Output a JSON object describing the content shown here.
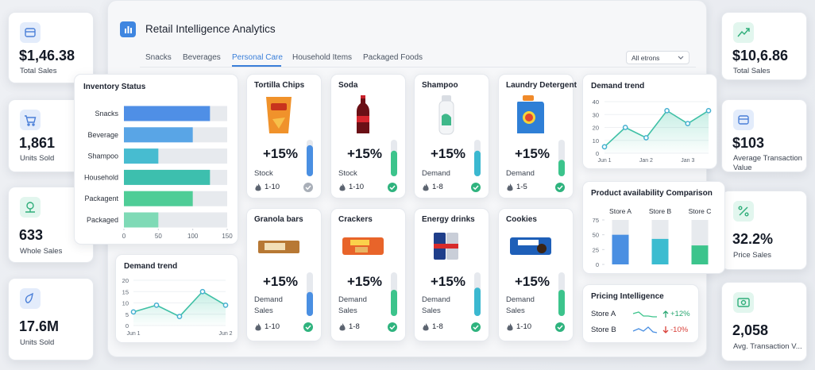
{
  "header": {
    "title": "Retail Intelligence Analytics",
    "tabs": [
      {
        "label": "Snacks"
      },
      {
        "label": "Beverages"
      },
      {
        "label": "Personal Care",
        "active": true
      },
      {
        "label": "Household Items"
      },
      {
        "label": "Packaged Foods"
      }
    ],
    "filter": "All etrons"
  },
  "kpis_left": [
    {
      "value": "$1,46.38",
      "label": "Total Sales"
    },
    {
      "value": "1,861",
      "label": "Units Sold"
    },
    {
      "value": "633",
      "label": "Whole Sales"
    },
    {
      "value": "17.6M",
      "label": "Units Sold"
    }
  ],
  "kpis_right": [
    {
      "value": "$10,6.86",
      "label": "Total Sales"
    },
    {
      "value": "$103",
      "label": "Average Transaction Value"
    },
    {
      "value": "32.2%",
      "label": "Price Sales"
    },
    {
      "value": "2,058",
      "label": "Avg. Transaction V..."
    }
  ],
  "products": [
    {
      "name": "Tortilla Chips",
      "change": "+15%",
      "labels": [
        "Stock"
      ],
      "range": "1-10",
      "gauge": 85,
      "color": "#4a8fe2"
    },
    {
      "name": "Soda",
      "change": "+15%",
      "labels": [
        "Stock"
      ],
      "range": "1-10",
      "gauge": 70,
      "color": "#3cc48c"
    },
    {
      "name": "Shampoo",
      "change": "+15%",
      "labels": [
        "Demand"
      ],
      "range": "1-8",
      "gauge": 70,
      "color": "#3bb8d0"
    },
    {
      "name": "Laundry Detergent",
      "change": "+15%",
      "labels": [
        "Demand"
      ],
      "range": "1-5",
      "gauge": 45,
      "color": "#3cc48c"
    },
    {
      "name": "Granola bars",
      "change": "+15%",
      "labels": [
        "Demand",
        "Sales"
      ],
      "range": "1-10",
      "gauge": 55,
      "color": "#4a8fe2"
    },
    {
      "name": "Crackers",
      "change": "+15%",
      "labels": [
        "Demand",
        "Sales"
      ],
      "range": "1-8",
      "gauge": 60,
      "color": "#3cc48c"
    },
    {
      "name": "Energy drinks",
      "change": "+15%",
      "labels": [
        "Demand",
        "Sales"
      ],
      "range": "1-8",
      "gauge": 65,
      "color": "#3bb8d0"
    },
    {
      "name": "Cookies",
      "change": "+15%",
      "labels": [
        "Demand",
        "Sales"
      ],
      "range": "1-10",
      "gauge": 60,
      "color": "#3cc48c"
    }
  ],
  "chart_data": [
    {
      "type": "hbar",
      "title": "Inventory Status",
      "categories": [
        "Snacks",
        "Beverage",
        "Shampoo",
        "Household",
        "Packagent",
        "Packaged"
      ],
      "values": [
        125,
        100,
        50,
        125,
        100,
        50
      ],
      "colors": [
        "#4f8fe6",
        "#59a5e6",
        "#47bcd0",
        "#3dbfae",
        "#4fcd97",
        "#7fdab6"
      ],
      "xlim": [
        0,
        150
      ],
      "xticks": [
        0,
        50,
        100,
        150
      ]
    },
    {
      "type": "line",
      "title": "Demand trend",
      "categories": [
        "Jun 1",
        null,
        "Jan 2",
        null,
        "Jan 3",
        null
      ],
      "values": [
        5,
        20,
        12,
        33,
        23,
        33
      ],
      "color": "#45b0d0",
      "ylim": [
        0,
        40
      ],
      "yticks": [
        0,
        10,
        20,
        30,
        40
      ]
    },
    {
      "type": "line",
      "title": "Demand trend",
      "categories": [
        "Jun 1",
        null,
        null,
        null,
        "Jun 2"
      ],
      "values": [
        6,
        9,
        4,
        15,
        9
      ],
      "color": "#45b0d0",
      "ylim": [
        0,
        20
      ],
      "yticks": [
        0,
        5,
        10,
        15,
        20
      ]
    },
    {
      "type": "bar",
      "title": "Product availability Comparison",
      "categories": [
        "Store A",
        "Store B",
        "Store C"
      ],
      "values": [
        50,
        43,
        32
      ],
      "colors": [
        "#4a8fe2",
        "#3bbcd0",
        "#3cc48c"
      ],
      "ylim": [
        0,
        75
      ],
      "yticks": [
        0,
        25,
        50,
        75
      ]
    }
  ],
  "pricing": {
    "title": "Pricing Intelligence",
    "rows": [
      {
        "store": "Store A",
        "change": "+12%"
      },
      {
        "store": "Store B",
        "change": "-10%"
      }
    ]
  }
}
